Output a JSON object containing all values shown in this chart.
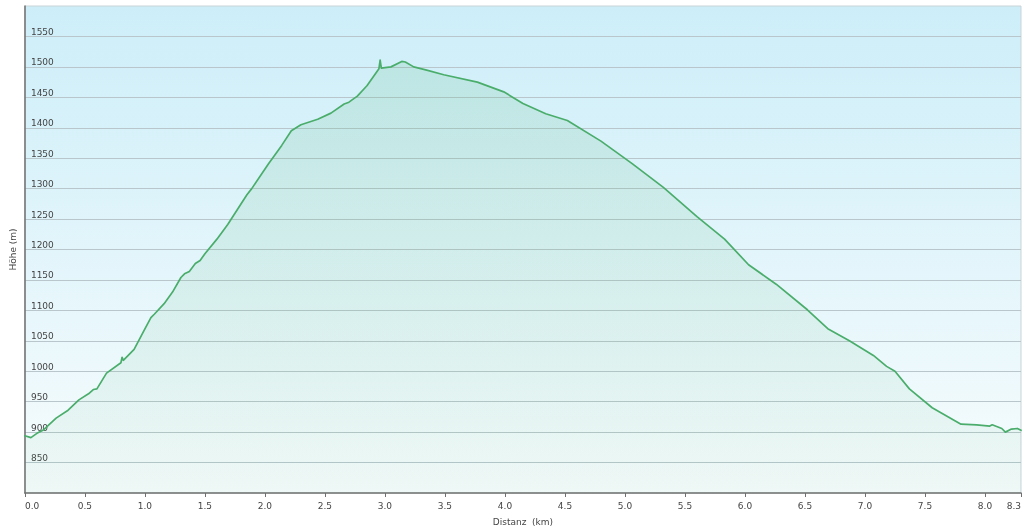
{
  "chart_data": {
    "type": "area",
    "xlabel": "Distanz  (km)",
    "ylabel": "Höhe (m)",
    "x": [
      0,
      0.05,
      0.1,
      0.15,
      0.26,
      0.36,
      0.45,
      0.53,
      0.57,
      0.6,
      0.68,
      0.8,
      0.81,
      0.82,
      0.91,
      0.99,
      1.05,
      1.08,
      1.16,
      1.23,
      1.3,
      1.33,
      1.37,
      1.42,
      1.46,
      1.5,
      1.6,
      1.69,
      1.85,
      1.89,
      2.03,
      2.14,
      2.22,
      2.3,
      2.44,
      2.55,
      2.66,
      2.7,
      2.77,
      2.85,
      2.95,
      2.96,
      2.97,
      3.05,
      3.14,
      3.17,
      3.24,
      3.34,
      3.49,
      3.77,
      3.99,
      4.15,
      4.34,
      4.52,
      4.8,
      5.06,
      5.32,
      5.6,
      5.83,
      6.03,
      6.26,
      6.52,
      6.69,
      6.87,
      7.07,
      7.18,
      7.25,
      7.37,
      7.56,
      7.8,
      7.93,
      8.04,
      8.06,
      8.14,
      8.17,
      8.22,
      8.27,
      8.3
    ],
    "values": [
      894,
      891,
      898,
      903,
      923,
      936,
      953,
      963,
      970,
      971,
      997,
      1014,
      1023,
      1018,
      1036,
      1066,
      1088,
      1094,
      1111,
      1130,
      1154,
      1160,
      1164,
      1177,
      1182,
      1193,
      1217,
      1241,
      1290,
      1300,
      1341,
      1371,
      1395,
      1405,
      1414,
      1424,
      1439,
      1442,
      1452,
      1469,
      1497,
      1511,
      1498,
      1500,
      1509,
      1508,
      1500,
      1495,
      1487,
      1475,
      1459,
      1440,
      1423,
      1412,
      1378,
      1341,
      1302,
      1254,
      1217,
      1175,
      1143,
      1101,
      1070,
      1050,
      1026,
      1008,
      1000,
      971,
      940,
      913,
      912,
      910,
      912,
      906,
      900,
      905,
      906,
      903
    ],
    "color": "#4aad6b",
    "xlim": [
      0,
      8.3
    ],
    "xticks": [
      {
        "value": 0,
        "label": "0.0"
      },
      0.5,
      {
        "value": 1,
        "label": "1.0"
      },
      1.5,
      {
        "value": 2,
        "label": "2.0"
      },
      2.5,
      {
        "value": 3,
        "label": "3.0"
      },
      3.5,
      {
        "value": 4,
        "label": "4.0"
      },
      4.5,
      {
        "value": 5,
        "label": "5.0"
      },
      5.5,
      {
        "value": 6,
        "label": "6.0"
      },
      6.5,
      {
        "value": 7,
        "label": "7.0"
      },
      7.5,
      {
        "value": 8,
        "label": "8.0"
      },
      8.3
    ],
    "ylim": [
      800,
      1600
    ],
    "yticks": [
      850,
      900,
      950,
      1000,
      1050,
      1100,
      1150,
      1200,
      1250,
      1300,
      1350,
      1400,
      1450,
      1500,
      1550
    ],
    "grid": "y"
  }
}
